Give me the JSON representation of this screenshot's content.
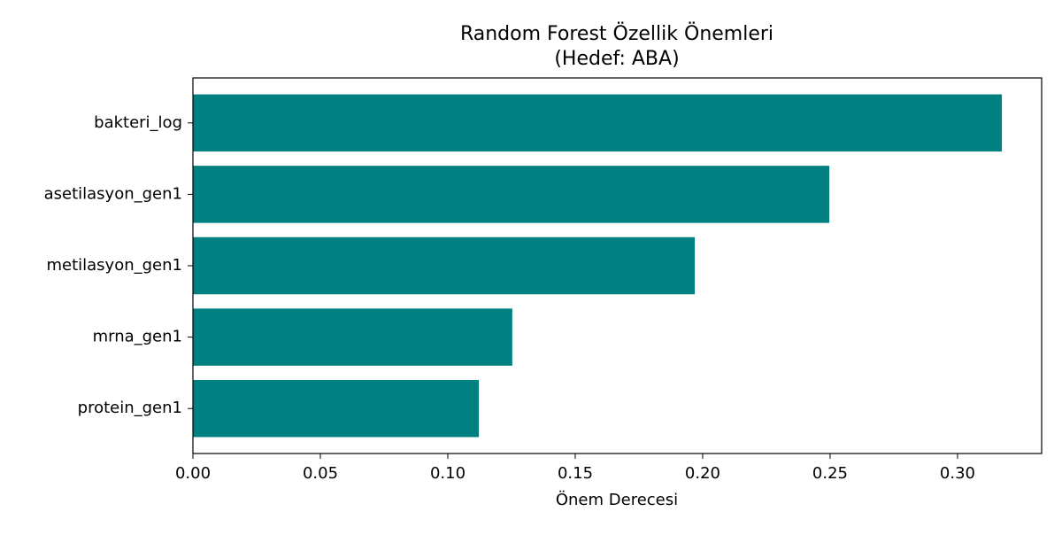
{
  "chart_data": {
    "type": "barh",
    "title": "Random Forest Özellik Önemleri",
    "subtitle": "(Hedef: ABA)",
    "x_label": "Önem Derecesi",
    "categories": [
      "bakteri_log",
      "asetilasyon_gen1",
      "metilasyon_gen1",
      "mrna_gen1",
      "protein_gen1"
    ],
    "values": [
      0.3174,
      0.2497,
      0.1969,
      0.1253,
      0.1122
    ],
    "color": "#008080",
    "xlim": [
      0,
      0.333
    ],
    "xticks": [
      {
        "value": 0,
        "label": "0.00"
      },
      {
        "value": 0.05,
        "label": "0.05"
      },
      {
        "value": 0.1,
        "label": "0.10"
      },
      {
        "value": 0.15,
        "label": "0.15"
      },
      {
        "value": 0.2,
        "label": "0.20"
      },
      {
        "value": 0.25,
        "label": "0.25"
      },
      {
        "value": 0.3,
        "label": "0.30"
      }
    ],
    "grid": false
  }
}
